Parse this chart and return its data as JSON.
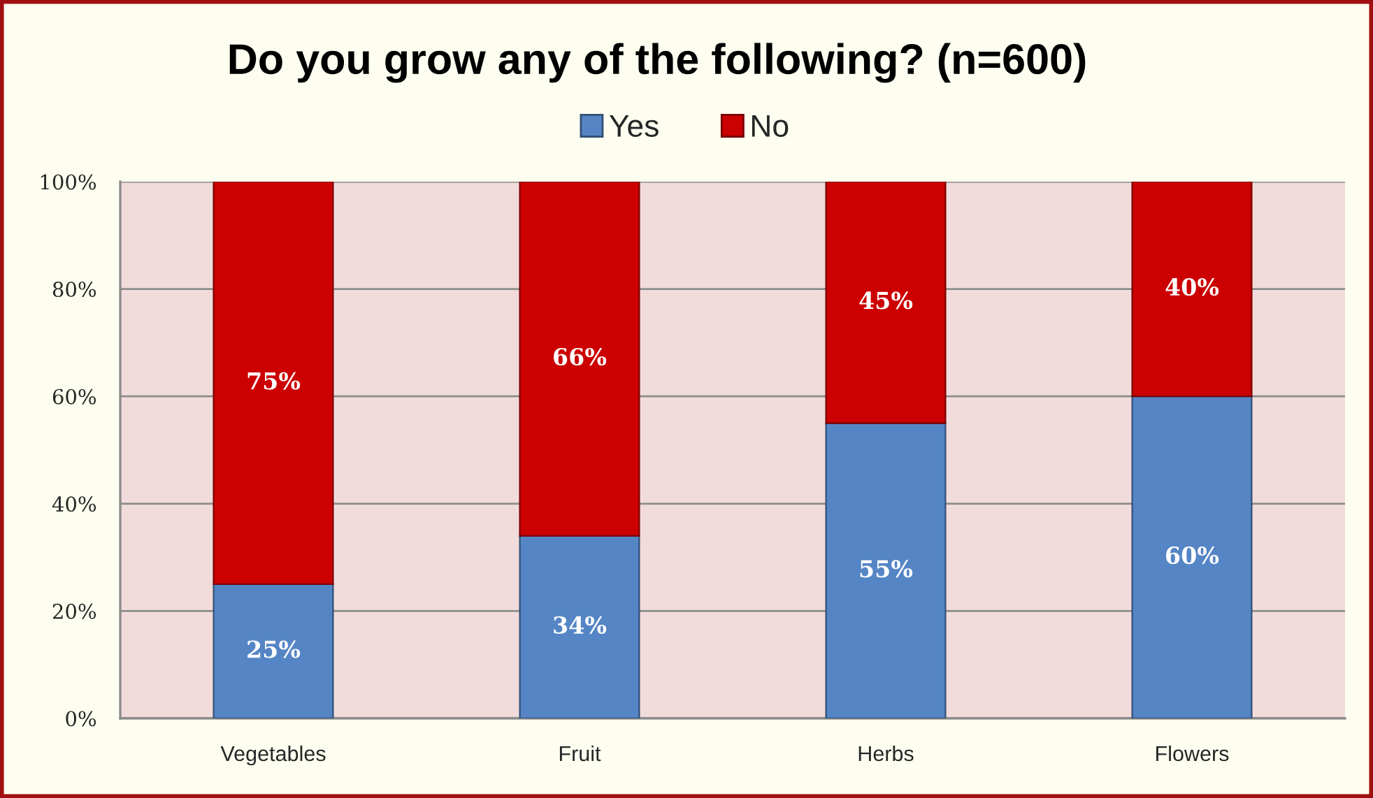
{
  "chart_data": {
    "type": "bar",
    "title": "Do you grow any of the following? (n=600)",
    "categories": [
      "Vegetables",
      "Fruit",
      "Herbs",
      "Flowers"
    ],
    "stacked": true,
    "series": [
      {
        "name": "Yes",
        "color": "#5585c5",
        "values": [
          25,
          34,
          55,
          60
        ],
        "value_labels": [
          "25%",
          "34%",
          "55%",
          "60%"
        ]
      },
      {
        "name": "No",
        "color": "#cc0000",
        "values": [
          75,
          66,
          45,
          40
        ],
        "value_labels": [
          "75%",
          "66%",
          "45%",
          "40%"
        ]
      }
    ],
    "ylim": [
      0,
      100
    ],
    "yticks": [
      {
        "value": 0,
        "label": "0%"
      },
      {
        "value": 20,
        "label": "20%"
      },
      {
        "value": 40,
        "label": "40%"
      },
      {
        "value": 60,
        "label": "60%"
      },
      {
        "value": 80,
        "label": "80%"
      },
      {
        "value": 100,
        "label": "100%"
      }
    ],
    "grid": "y",
    "legend": "top"
  }
}
